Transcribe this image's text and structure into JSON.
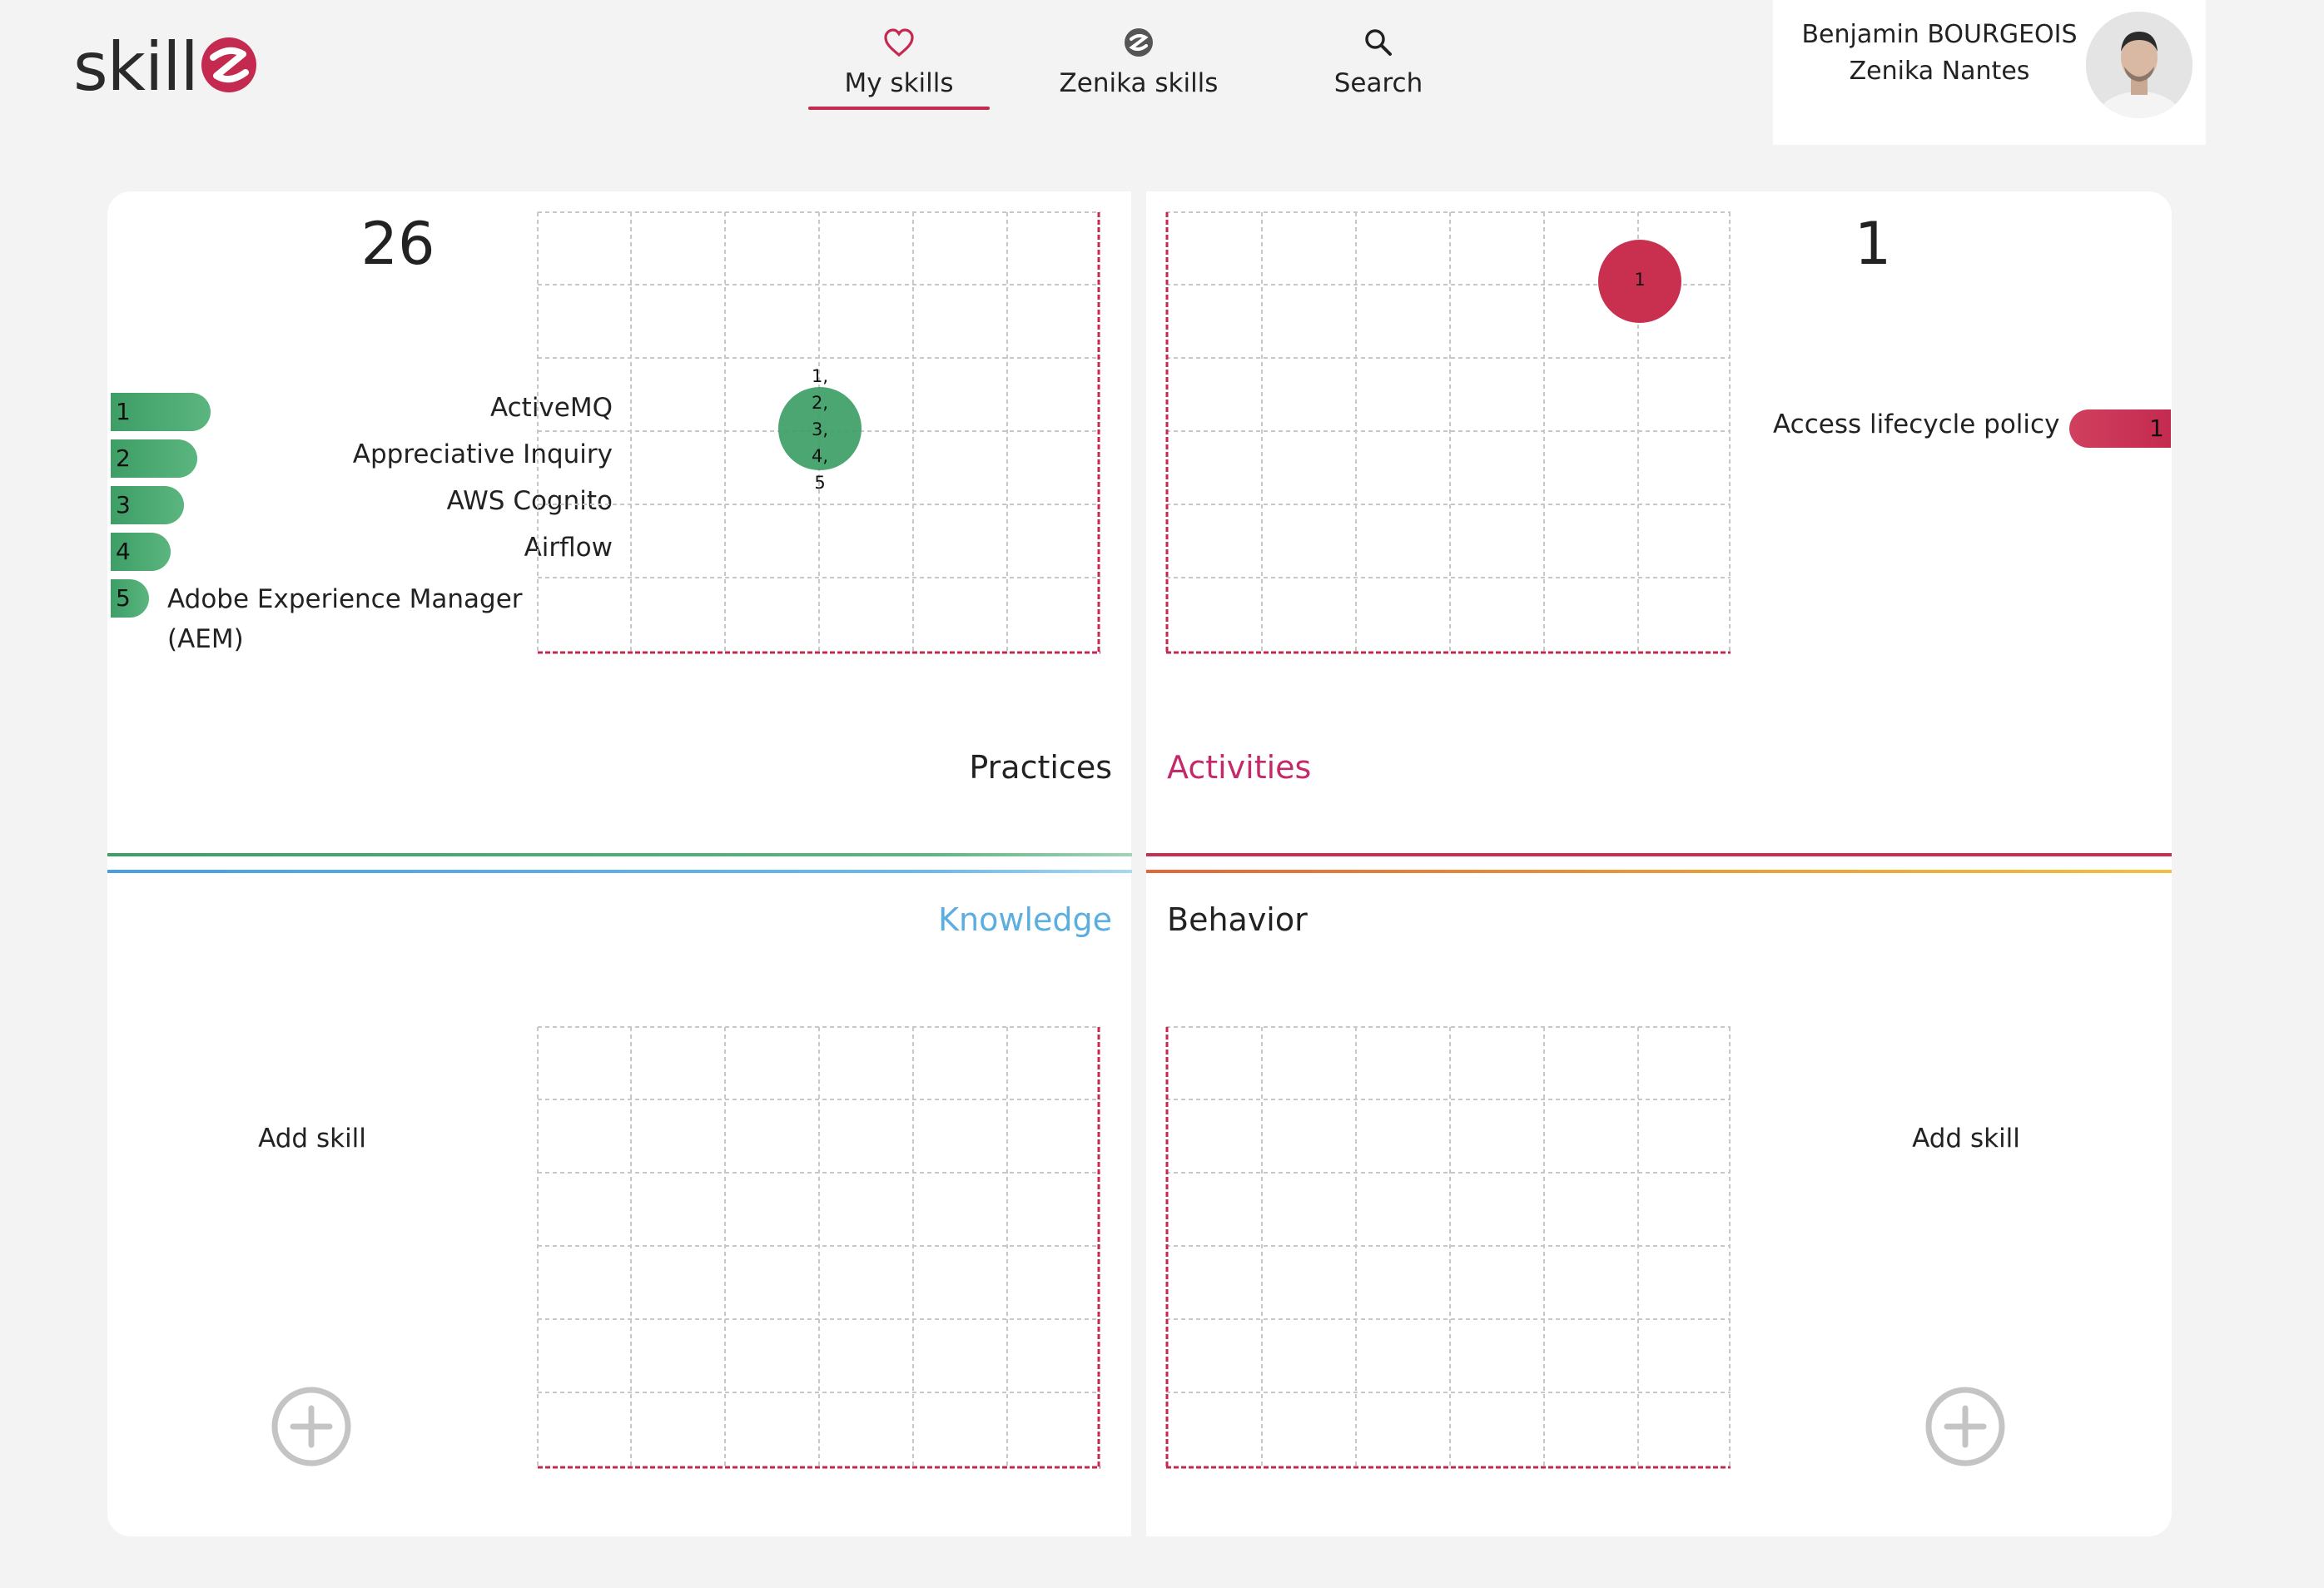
{
  "header": {
    "logo_text": "skill",
    "nav": [
      {
        "label": "My skills",
        "icon": "heart-icon",
        "active": true
      },
      {
        "label": "Zenika skills",
        "icon": "zenika-logo-icon",
        "active": false
      },
      {
        "label": "Search",
        "icon": "search-icon",
        "active": false
      }
    ],
    "profile": {
      "name": "Benjamin BOURGEOIS",
      "company": "Zenika Nantes"
    }
  },
  "colors": {
    "accent": "#c42a4f",
    "practices": "#3d9e66",
    "activities": "#c9304f",
    "knowledge": "#5aaee0",
    "behavior": "#e8a23a"
  },
  "quadrants": {
    "practices": {
      "title": "Practices",
      "count": "26",
      "skills": [
        {
          "num": "1",
          "label": "ActiveMQ"
        },
        {
          "num": "2",
          "label": "Appreciative Inquiry"
        },
        {
          "num": "3",
          "label": "AWS Cognito"
        },
        {
          "num": "4",
          "label": "Airflow"
        },
        {
          "num": "5",
          "label": "Adobe Experience Manager (AEM)"
        }
      ],
      "bubble_labels": [
        "1,",
        "2,",
        "3,",
        "4,",
        "5"
      ]
    },
    "activities": {
      "title": "Activities",
      "count": "1",
      "skills": [
        {
          "num": "1",
          "label": "Access lifecycle policy"
        }
      ],
      "bubble_label": "1"
    },
    "knowledge": {
      "title": "Knowledge",
      "add_label": "Add skill"
    },
    "behavior": {
      "title": "Behavior",
      "add_label": "Add skill"
    }
  }
}
